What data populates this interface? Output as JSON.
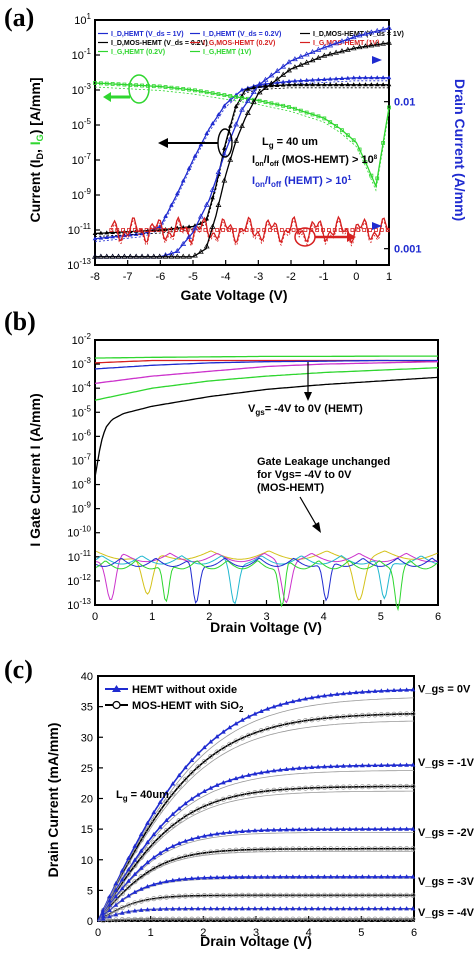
{
  "chart_data": [
    {
      "panel": "(a)",
      "type": "line",
      "xlabel": "Gate Voltage (V)",
      "ylabel_left": "Current (I_D, I_G) [A/mm]",
      "ylabel_right": "Drain Current (A/mm)",
      "xlim": [
        -8,
        1
      ],
      "xticks": [
        "-8",
        "-7",
        "-6",
        "-5",
        "-4",
        "-3",
        "-2",
        "-1",
        "0",
        "1"
      ],
      "ylim_left_log": [
        -13,
        1
      ],
      "yticks_left": [
        "10^-13",
        "10^-11",
        "10^-9",
        "10^-7",
        "10^-5",
        "10^-3",
        "10^-1",
        "10^1"
      ],
      "ylim_right": [
        0,
        0.015
      ],
      "yticks_right": [
        "0.001",
        "0.01"
      ],
      "legend": [
        {
          "name": "I_D,HEMT (V_ds = 1V)",
          "color": "#1f2bd0",
          "marker": "triangle-filled"
        },
        {
          "name": "I_D,HEMT (V_ds = 0.2V)",
          "color": "#1f2bd0",
          "marker": "triangle-open"
        },
        {
          "name": "I_D,MOS-HEMT (V_ds = 1V)",
          "color": "#000000",
          "marker": "triangle-filled"
        },
        {
          "name": "I_D,MOS-HEMT (V_ds = 0.2V)",
          "color": "#000000",
          "marker": "triangle-open"
        },
        {
          "name": "I_G,MOS-HEMT (0.2V)",
          "color": "#d62020",
          "marker": "square"
        },
        {
          "name": "I_G,MOS-HEMT (1V)",
          "color": "#d62020",
          "marker": "square-open"
        },
        {
          "name": "I_G,HEMT (0.2V)",
          "color": "#2fd62f",
          "marker": "square"
        },
        {
          "name": "I_G,HEMT (1V)",
          "color": "#2fd62f",
          "marker": "square-open"
        }
      ],
      "series_log": [
        {
          "name": "I_D,HEMT",
          "color": "#1f2bd0",
          "x": [
            -8,
            -7,
            -6.5,
            -6,
            -5.5,
            -5,
            -4.5,
            -4,
            -3.5,
            -3,
            -2,
            -1,
            0,
            1
          ],
          "y_log10": [
            -11.5,
            -11.3,
            -11.2,
            -10.8,
            -9.0,
            -7.0,
            -5.2,
            -3.8,
            -3.0,
            -2.7,
            -2.5,
            -2.4,
            -2.3,
            -2.3
          ]
        },
        {
          "name": "I_D,MOS-HEMT",
          "color": "#000000",
          "x": [
            -8,
            -6,
            -5,
            -4.6,
            -4.3,
            -4.0,
            -3.7,
            -3.4,
            -3,
            -2,
            -1,
            0,
            1
          ],
          "y_log10": [
            -11.2,
            -11.0,
            -10.8,
            -10.5,
            -8.5,
            -6.0,
            -4.0,
            -3.0,
            -2.8,
            -2.7,
            -2.7,
            -2.7,
            -2.7
          ]
        },
        {
          "name": "I_G,HEMT",
          "color": "#2fd62f",
          "x": [
            -8,
            -7,
            -6,
            -5,
            -4,
            -3,
            -2,
            -1,
            -0.5,
            0,
            0.3,
            0.6,
            1
          ],
          "y_log10": [
            -2.6,
            -2.7,
            -2.8,
            -3.0,
            -3.3,
            -3.6,
            -4.0,
            -4.6,
            -5.2,
            -6.0,
            -7.2,
            -8.5,
            -4.0
          ]
        },
        {
          "name": "I_G,MOS-HEMT",
          "color": "#d62020",
          "x": [
            -7.5,
            -6,
            -5,
            -4,
            -3,
            -2,
            -1,
            0,
            1
          ],
          "y_log10": [
            -11,
            -11,
            -11,
            -11,
            -11,
            -11,
            -11,
            -11,
            -11
          ]
        }
      ],
      "series_linear": [
        {
          "name": "I_D,HEMT (linear)",
          "color": "#1f2bd0",
          "x": [
            -8,
            -6,
            -5.5,
            -5,
            -4.5,
            -4,
            -3.5,
            -3,
            -2,
            -1,
            0,
            1
          ],
          "y": [
            0.0005,
            0.0005,
            0.0008,
            0.002,
            0.004,
            0.007,
            0.0095,
            0.011,
            0.0125,
            0.0133,
            0.014,
            0.0145
          ]
        },
        {
          "name": "I_D,MOS-HEMT (linear)",
          "color": "#000000",
          "x": [
            -8,
            -5,
            -4.6,
            -4.3,
            -4.0,
            -3.7,
            -3.4,
            -3,
            -2,
            -1,
            0,
            1
          ],
          "y": [
            0.0005,
            0.0005,
            0.001,
            0.003,
            0.0055,
            0.0075,
            0.009,
            0.0105,
            0.012,
            0.0128,
            0.0133,
            0.0136
          ]
        }
      ],
      "annotations": [
        "L_g = 40 um",
        "I_on/I_off (MOS-HEMT) > 10^8",
        "I_on/I_off (HEMT) > 10^1"
      ]
    },
    {
      "panel": "(b)",
      "type": "line",
      "xlabel": "Drain Voltage (V)",
      "ylabel": "I Gate Current I (A/mm)",
      "xlim": [
        0,
        6
      ],
      "xticks": [
        "0",
        "1",
        "2",
        "3",
        "4",
        "5",
        "6"
      ],
      "ylim_log": [
        -13,
        -2
      ],
      "yticks": [
        "10^-2",
        "10^-3",
        "10^-4",
        "10^-5",
        "10^-6",
        "10^-7",
        "10^-8",
        "10^-9",
        "10^-10",
        "10^-11",
        "10^-12",
        "10^-13"
      ],
      "series_log": [
        {
          "color": "#2fd62f",
          "x": [
            0,
            1,
            2,
            3,
            4,
            5,
            6
          ],
          "y_log10": [
            -2.75,
            -2.72,
            -2.7,
            -2.68,
            -2.68,
            -2.67,
            -2.67
          ]
        },
        {
          "color": "#d62020",
          "x": [
            0,
            1,
            2,
            3,
            4,
            5,
            6
          ],
          "y_log10": [
            -2.95,
            -2.85,
            -2.85,
            -2.85,
            -2.85,
            -2.85,
            -2.87
          ]
        },
        {
          "color": "#1f2bd0",
          "x": [
            0,
            1,
            2,
            3,
            4,
            5,
            6
          ],
          "y_log10": [
            -3.2,
            -3.05,
            -2.95,
            -2.9,
            -2.88,
            -2.85,
            -2.85
          ]
        },
        {
          "color": "#cc33cc",
          "x": [
            0,
            1,
            2,
            3,
            4,
            5,
            6
          ],
          "y_log10": [
            -3.8,
            -3.5,
            -3.3,
            -3.1,
            -3.0,
            -2.95,
            -2.9
          ]
        },
        {
          "color": "#2fd62f",
          "x": [
            0,
            1,
            2,
            3,
            4,
            5,
            6
          ],
          "y_log10": [
            -4.5,
            -4.0,
            -3.7,
            -3.5,
            -3.35,
            -3.25,
            -3.15
          ]
        },
        {
          "color": "#000000",
          "x": [
            0,
            0.05,
            0.1,
            0.15,
            0.2,
            0.3,
            0.5,
            1,
            2,
            3,
            4,
            5,
            6
          ],
          "y_log10": [
            -7.7,
            -7.0,
            -6.3,
            -5.9,
            -5.6,
            -5.3,
            -5.05,
            -4.75,
            -4.35,
            -4.05,
            -3.85,
            -3.7,
            -3.55
          ]
        }
      ],
      "leakage_band_log": [
        -12.5,
        -10.5
      ],
      "annotations": [
        "V_gs = -4V to 0V (HEMT)",
        "Gate Leakage unchanged",
        "for Vgs= -4V to 0V",
        "(MOS-HEMT)"
      ]
    },
    {
      "panel": "(c)",
      "type": "line",
      "xlabel": "Drain Voltage (V)",
      "ylabel": "Drain Current (mA/mm)",
      "xlim": [
        0,
        6
      ],
      "xticks": [
        "0",
        "1",
        "2",
        "3",
        "4",
        "5",
        "6"
      ],
      "ylim": [
        0,
        40
      ],
      "yticks": [
        "0",
        "5",
        "10",
        "15",
        "20",
        "25",
        "30",
        "35",
        "40"
      ],
      "legend": [
        {
          "name": "HEMT without oxide",
          "color": "#1f2bd0"
        },
        {
          "name": "MOS-HEMT with SiO2",
          "color": "#000000"
        }
      ],
      "vgs_labels": [
        "V_gs = 0V",
        "V_gs = -1V",
        "V_gs = -2V",
        "V_gs = -3V",
        "V_gs = -4V"
      ],
      "saturation_hemt": [
        38,
        25.5,
        15,
        7.2,
        2.0
      ],
      "saturation_mos": [
        34,
        22,
        11.8,
        4.2,
        0.3
      ],
      "annotations": [
        "L_g = 40um"
      ]
    }
  ],
  "colors": {
    "blue": "#1f2bd0",
    "green": "#2fd62f",
    "red": "#d62020",
    "black": "#000000",
    "magenta": "#cc33cc",
    "yellow": "#d4c21a",
    "cyan": "#22b8d0"
  },
  "labels": {
    "panel_a": "(a)",
    "panel_b": "(b)",
    "panel_c": "(c)",
    "a_xlabel": "Gate Voltage (V)",
    "a_ylabel_left": "Current (I",
    "a_ylabel_right": "Drain Current (A/mm)",
    "a_lg": "L_g = 40 um",
    "a_ratio_mos": "I_on/I_off (MOS-HEMT) > 10^8",
    "a_ratio_hemt": "I_on/I_off (HEMT) > 10^1",
    "b_xlabel": "Drain Voltage (V)",
    "b_ylabel": "I Gate Current I (A/mm)",
    "b_vgs": "V_gs= -4V to 0V (HEMT)",
    "b_leak1": "Gate Leakage unchanged",
    "b_leak2": "for Vgs= -4V to 0V",
    "b_leak3": "(MOS-HEMT)",
    "c_xlabel": "Drain Voltage (V)",
    "c_ylabel": "Drain Current (mA/mm)",
    "c_leg1": "HEMT without oxide",
    "c_leg2": "MOS-HEMT with SiO2",
    "c_lg": "L_g = 40um"
  }
}
